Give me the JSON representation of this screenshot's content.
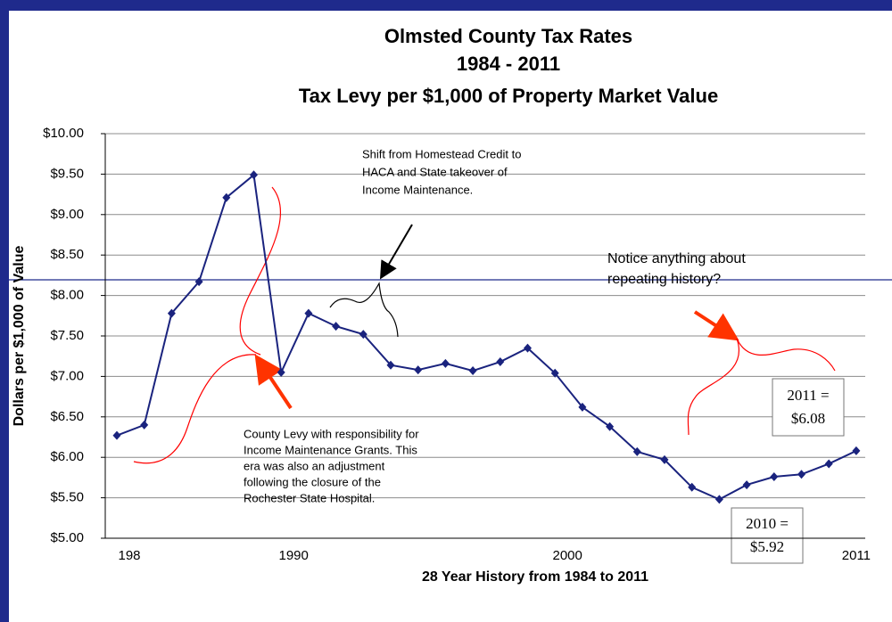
{
  "chart_data": {
    "type": "line",
    "title": [
      "Olmsted County Tax Rates",
      "1984 - 2011",
      "Tax Levy per $1,000 of Property Market Value"
    ],
    "y_label": "Dollars per $1,000 of Value",
    "x_label": "28 Year History from 1984 to 2011",
    "categories": [
      "198",
      null,
      null,
      null,
      null,
      null,
      "1990",
      null,
      null,
      null,
      null,
      null,
      null,
      null,
      null,
      null,
      "2000",
      null,
      null,
      null,
      null,
      null,
      null,
      null,
      null,
      null,
      null,
      "2011"
    ],
    "series": [
      {
        "name": "Tax Levy",
        "color": "#1a237e",
        "values": [
          6.27,
          6.4,
          7.78,
          8.17,
          9.21,
          9.49,
          7.05,
          7.78,
          7.62,
          7.52,
          7.14,
          7.08,
          7.16,
          7.07,
          7.18,
          7.35,
          7.04,
          6.62,
          6.38,
          6.07,
          5.97,
          5.63,
          5.48,
          5.66,
          5.76,
          5.79,
          5.92,
          6.08
        ]
      }
    ],
    "ylim": [
      5,
      10
    ],
    "yticks": [
      {
        "value": 5,
        "label": "$5.00"
      },
      {
        "value": 5.5,
        "label": "$5.50"
      },
      {
        "value": 6,
        "label": "$6.00"
      },
      {
        "value": 6.5,
        "label": "$6.50"
      },
      {
        "value": 7,
        "label": "$7.00"
      },
      {
        "value": 7.5,
        "label": "$7.50"
      },
      {
        "value": 8,
        "label": "$8.00"
      },
      {
        "value": 8.5,
        "label": "$8.50"
      },
      {
        "value": 9,
        "label": "$9.00"
      },
      {
        "value": 9.5,
        "label": "$9.50"
      },
      {
        "value": 10,
        "label": "$10.00"
      }
    ],
    "grid": true,
    "annotations": [
      [
        "Shift from Homestead Credit to",
        "HACA and State takeover of",
        "Income Maintenance."
      ],
      [
        "Notice anything about",
        "repeating history?"
      ],
      [
        "County Levy with responsibility for",
        "Income Maintenance Grants.  This",
        "era was also an adjustment",
        "following the closure of the",
        "Rochester State Hospital."
      ],
      [
        "2011 =",
        "$6.08"
      ],
      [
        "2010 =",
        "$5.92"
      ]
    ]
  }
}
